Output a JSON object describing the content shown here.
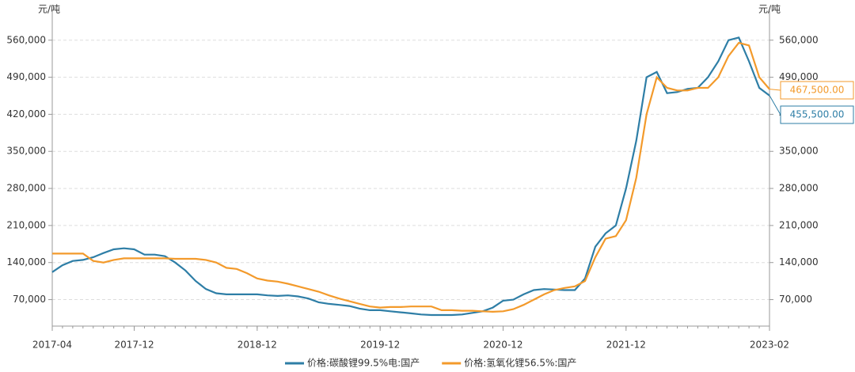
{
  "chart_data": {
    "type": "line",
    "ylabel": "元/吨",
    "y2label": "元/吨",
    "x": [
      "2017-04",
      "2017-05",
      "2017-06",
      "2017-07",
      "2017-08",
      "2017-09",
      "2017-10",
      "2017-11",
      "2017-12",
      "2018-01",
      "2018-02",
      "2018-03",
      "2018-04",
      "2018-05",
      "2018-06",
      "2018-07",
      "2018-08",
      "2018-09",
      "2018-10",
      "2018-11",
      "2018-12",
      "2019-01",
      "2019-02",
      "2019-03",
      "2019-04",
      "2019-05",
      "2019-06",
      "2019-07",
      "2019-08",
      "2019-09",
      "2019-10",
      "2019-11",
      "2019-12",
      "2020-01",
      "2020-02",
      "2020-03",
      "2020-04",
      "2020-05",
      "2020-06",
      "2020-07",
      "2020-08",
      "2020-09",
      "2020-10",
      "2020-11",
      "2020-12",
      "2021-01",
      "2021-02",
      "2021-03",
      "2021-04",
      "2021-05",
      "2021-06",
      "2021-07",
      "2021-08",
      "2021-09",
      "2021-10",
      "2021-11",
      "2021-12",
      "2022-01",
      "2022-02",
      "2022-03",
      "2022-04",
      "2022-05",
      "2022-06",
      "2022-07",
      "2022-08",
      "2022-09",
      "2022-10",
      "2022-11",
      "2022-12",
      "2023-01",
      "2023-02"
    ],
    "xticks": [
      "2017-04",
      "2017-12",
      "2018-12",
      "2019-12",
      "2020-12",
      "2021-12",
      "2023-02"
    ],
    "series": [
      {
        "name": "价格:碳酸锂99.5%电:国产",
        "color": "#2e7ea6",
        "values": [
          122000,
          135000,
          143000,
          145000,
          150000,
          158000,
          165000,
          167000,
          165000,
          155000,
          155000,
          152000,
          140000,
          125000,
          105000,
          90000,
          82000,
          80000,
          80000,
          80000,
          80000,
          78000,
          77000,
          78000,
          76000,
          72000,
          65000,
          62000,
          60000,
          58000,
          53000,
          50000,
          50000,
          48000,
          46000,
          44000,
          42000,
          41000,
          41000,
          41000,
          42000,
          45000,
          48000,
          55000,
          68000,
          70000,
          80000,
          88000,
          90000,
          89000,
          88000,
          88000,
          110000,
          170000,
          195000,
          210000,
          280000,
          370000,
          490000,
          500000,
          460000,
          462000,
          468000,
          470000,
          490000,
          520000,
          560000,
          565000,
          520000,
          470000,
          455500
        ],
        "value_labels": [
          null,
          null,
          null,
          null,
          null,
          null,
          null,
          null,
          null,
          null,
          null,
          null,
          null,
          null,
          null,
          null,
          null,
          null,
          null,
          null,
          null,
          null,
          null,
          null,
          null,
          null,
          null,
          null,
          null,
          null,
          null,
          null,
          null,
          null,
          null,
          null,
          null,
          null,
          null,
          null,
          null,
          null,
          null,
          null,
          null,
          null,
          null,
          null,
          null,
          null,
          null,
          null,
          null,
          null,
          null,
          null,
          null,
          null,
          null,
          null,
          null,
          null,
          null,
          null,
          null,
          null,
          null,
          null,
          null,
          null,
          "455,500.00"
        ]
      },
      {
        "name": "价格:氢氧化锂56.5%:国产",
        "color": "#f39a2b",
        "values": [
          157000,
          157000,
          157000,
          157000,
          143000,
          140000,
          145000,
          148000,
          148000,
          148000,
          148000,
          148000,
          147000,
          147000,
          147000,
          145000,
          140000,
          130000,
          128000,
          120000,
          110000,
          106000,
          104000,
          100000,
          95000,
          90000,
          85000,
          78000,
          72000,
          67000,
          62000,
          57000,
          55000,
          56000,
          56000,
          57000,
          57000,
          57000,
          50000,
          50000,
          49000,
          49000,
          48000,
          47000,
          48000,
          52000,
          60000,
          70000,
          80000,
          88000,
          92000,
          95000,
          105000,
          150000,
          185000,
          190000,
          220000,
          300000,
          420000,
          490000,
          470000,
          465000,
          465000,
          470000,
          470000,
          490000,
          530000,
          555000,
          550000,
          490000,
          467500
        ],
        "value_labels": [
          null,
          null,
          null,
          null,
          null,
          null,
          null,
          null,
          null,
          null,
          null,
          null,
          null,
          null,
          null,
          null,
          null,
          null,
          null,
          null,
          null,
          null,
          null,
          null,
          null,
          null,
          null,
          null,
          null,
          null,
          null,
          null,
          null,
          null,
          null,
          null,
          null,
          null,
          null,
          null,
          null,
          null,
          null,
          null,
          null,
          null,
          null,
          null,
          null,
          null,
          null,
          null,
          null,
          null,
          null,
          null,
          null,
          null,
          null,
          null,
          null,
          null,
          null,
          null,
          null,
          null,
          null,
          null,
          null,
          null,
          "467,500.00"
        ]
      }
    ],
    "ylim": [
      20000,
      600000
    ],
    "yticks": [
      {
        "value": 70000,
        "label": "70,000"
      },
      {
        "value": 140000,
        "label": "140,000"
      },
      {
        "value": 210000,
        "label": "210,000"
      },
      {
        "value": 280000,
        "label": "280,000"
      },
      {
        "value": 350000,
        "label": "350,000"
      },
      {
        "value": 420000,
        "label": "420,000"
      },
      {
        "value": 490000,
        "label": "490,000"
      },
      {
        "value": 560000,
        "label": "560,000"
      }
    ],
    "y2lim": [
      20000,
      600000
    ],
    "y2ticks": [
      {
        "value": 70000,
        "label": "70,000"
      },
      {
        "value": 140000,
        "label": "140,000"
      },
      {
        "value": 210000,
        "label": "210,000"
      },
      {
        "value": 280000,
        "label": "280,000"
      },
      {
        "value": 350000,
        "label": "350,000"
      },
      {
        "value": 420000,
        "label": "420,000"
      },
      {
        "value": 490000,
        "label": "490,000"
      },
      {
        "value": 560000,
        "label": "560,000"
      }
    ],
    "grid": true,
    "legend": "bottom"
  }
}
